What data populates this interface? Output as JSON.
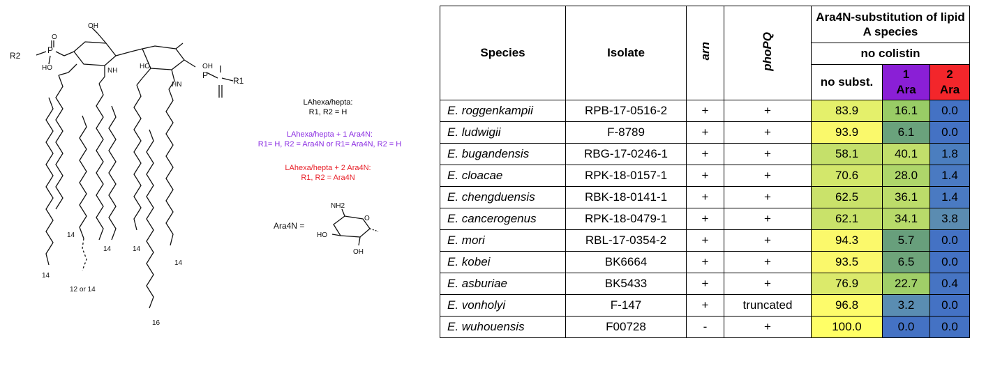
{
  "molecule": {
    "atom_labels": {
      "r2": "R2",
      "r1": "R1",
      "p": "P",
      "oh": "OH",
      "ho": "HO",
      "o": "O",
      "nh": "NH",
      "hn": "HN"
    },
    "chain_lengths": [
      "14",
      "14",
      "12 or 14",
      "14",
      "14",
      "14",
      "16",
      "14"
    ]
  },
  "legend": {
    "la_base_title": "LAhexa/hepta:",
    "la_base_line": "R1, R2 = H",
    "la_1_title": "LAhexa/hepta + 1 Ara4N:",
    "la_1_line": "R1= H, R2 = Ara4N or R1= Ara4N, R2 = H",
    "la_2_title": "LAhexa/hepta + 2 Ara4N:",
    "la_2_line": "R1, R2 = Ara4N",
    "ara4n_label": "Ara4N =",
    "ara4n_nh2": "NH2",
    "ara4n_ho": "HO",
    "ara4n_oh": "OH",
    "ara4n_o": "O"
  },
  "table": {
    "header": {
      "species": "Species",
      "isolate": "Isolate",
      "arn": "arn",
      "phopq": "phoPQ",
      "group": "Ara4N-substitution of lipid A species",
      "condition": "no colistin",
      "no_subst": "no subst.",
      "one_ara_n": "1",
      "one_ara_t": "Ara",
      "two_ara_n": "2",
      "two_ara_t": "Ara"
    },
    "rows": [
      {
        "species": "E. roggenkampii",
        "isolate": "RPB-17-0516-2",
        "arn": "+",
        "phopq": "+",
        "no_subst": "83.9",
        "one_ara": "16.1",
        "two_ara": "0.0",
        "c0": "#e4f06b",
        "c1": "#99cc66",
        "c2": "#4472c4"
      },
      {
        "species": "E. ludwigii",
        "isolate": "F-8789",
        "arn": "+",
        "phopq": "+",
        "no_subst": "93.9",
        "one_ara": "6.1",
        "two_ara": "0.0",
        "c0": "#faf96b",
        "c1": "#6aa27c",
        "c2": "#4472c4"
      },
      {
        "species": "E. bugandensis",
        "isolate": "RBG-17-0246-1",
        "arn": "+",
        "phopq": "+",
        "no_subst": "58.1",
        "one_ara": "40.1",
        "two_ara": "1.8",
        "c0": "#c5e06a",
        "c1": "#c2df6b",
        "c2": "#4b7ebf"
      },
      {
        "species": "E. cloacae",
        "isolate": "RPK-18-0157-1",
        "arn": "+",
        "phopq": "+",
        "no_subst": "70.6",
        "one_ara": "28.0",
        "two_ara": "1.4",
        "c0": "#d3e76b",
        "c1": "#aed66a",
        "c2": "#4a7ac2"
      },
      {
        "species": "E. chengduensis",
        "isolate": "RBK-18-0141-1",
        "arn": "+",
        "phopq": "+",
        "no_subst": "62.5",
        "one_ara": "36.1",
        "two_ara": "1.4",
        "c0": "#cae26a",
        "c1": "#bcdc6a",
        "c2": "#4a7ac2"
      },
      {
        "species": "E. cancerogenus",
        "isolate": "RPK-18-0479-1",
        "arn": "+",
        "phopq": "+",
        "no_subst": "62.1",
        "one_ara": "34.1",
        "two_ara": "3.8",
        "c0": "#c9e26a",
        "c1": "#b8da6a",
        "c2": "#5b8cb1"
      },
      {
        "species": "E. mori",
        "isolate": "RBL-17-0354-2",
        "arn": "+",
        "phopq": "+",
        "no_subst": "94.3",
        "one_ara": "5.7",
        "two_ara": "0.0",
        "c0": "#fbf96b",
        "c1": "#689f7c",
        "c2": "#4472c4"
      },
      {
        "species": "E. kobei",
        "isolate": "BK6664",
        "arn": "+",
        "phopq": "+",
        "no_subst": "93.5",
        "one_ara": "6.5",
        "two_ara": "0.0",
        "c0": "#faf86b",
        "c1": "#6ea47a",
        "c2": "#4472c4"
      },
      {
        "species": "E. asburiae",
        "isolate": "BK5433",
        "arn": "+",
        "phopq": "+",
        "no_subst": "76.9",
        "one_ara": "22.7",
        "two_ara": "0.4",
        "c0": "#dbea6b",
        "c1": "#a0cf68",
        "c2": "#4674c3"
      },
      {
        "species": "E. vonholyi",
        "isolate": "F-147",
        "arn": "+",
        "phopq": "truncated",
        "no_subst": "96.8",
        "one_ara": "3.2",
        "two_ara": "0.0",
        "c0": "#fdfb6b",
        "c1": "#5a8db2",
        "c2": "#4472c4"
      },
      {
        "species": "E. wuhouensis",
        "isolate": "F00728",
        "arn": "-",
        "phopq": "+",
        "no_subst": "100.0",
        "one_ara": "0.0",
        "two_ara": "0.0",
        "c0": "#ffff66",
        "c1": "#4472c4",
        "c2": "#4472c4"
      }
    ]
  }
}
